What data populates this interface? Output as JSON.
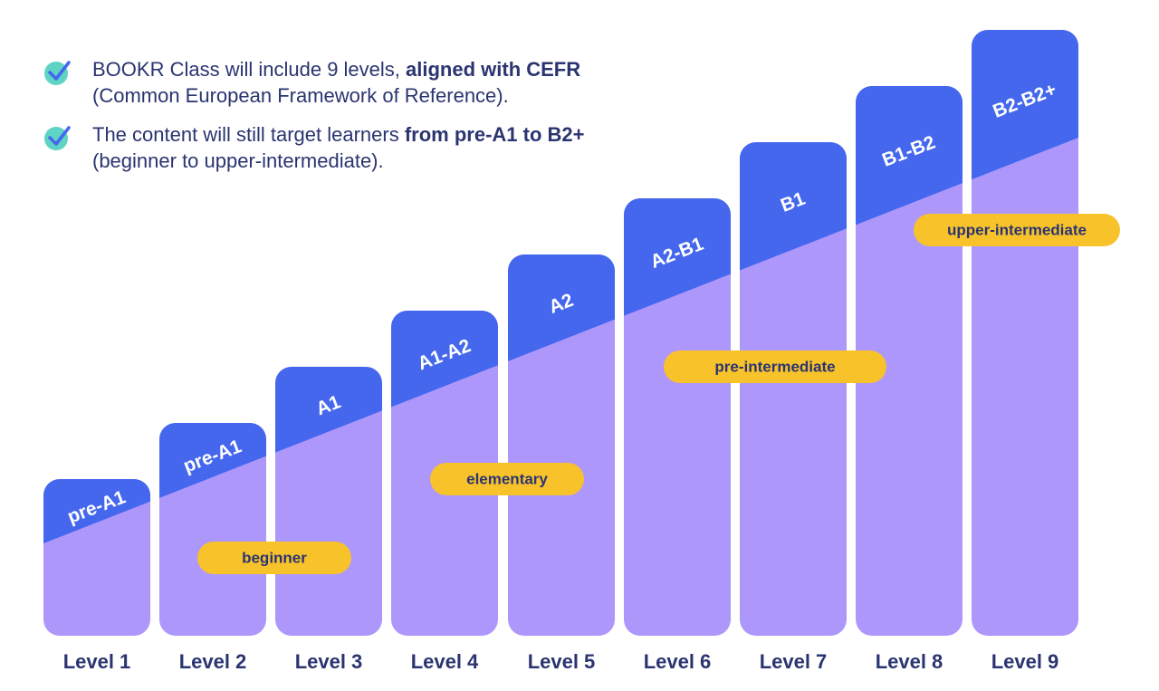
{
  "intro": {
    "bullets": [
      {
        "text_before": "BOOKR Class will include 9 levels, ",
        "bold": "aligned with CEFR",
        "line2": "(Common European Framework of Reference)."
      },
      {
        "text_before": "The content will still target learners ",
        "bold": "from pre-A1 to B2+",
        "line2": "(beginner to upper-intermediate)."
      }
    ]
  },
  "levels": [
    {
      "label": "Level 1",
      "cefr": "pre-A1"
    },
    {
      "label": "Level 2",
      "cefr": "pre-A1"
    },
    {
      "label": "Level 3",
      "cefr": "A1"
    },
    {
      "label": "Level 4",
      "cefr": "A1-A2"
    },
    {
      "label": "Level 5",
      "cefr": "A2"
    },
    {
      "label": "Level 6",
      "cefr": "A2-B1"
    },
    {
      "label": "Level 7",
      "cefr": "B1"
    },
    {
      "label": "Level 8",
      "cefr": "B1-B2"
    },
    {
      "label": "Level 9",
      "cefr": "B2-B2+"
    }
  ],
  "stages": [
    {
      "name": "beginner"
    },
    {
      "name": "elementary"
    },
    {
      "name": "pre-intermediate"
    },
    {
      "name": "upper-intermediate"
    }
  ],
  "colors": {
    "bar_top": "#4467ee",
    "bar_bottom": "#ad97fb",
    "stage_pill": "#f8c22b",
    "check": "#5fd3c4",
    "text": "#2a3470"
  }
}
